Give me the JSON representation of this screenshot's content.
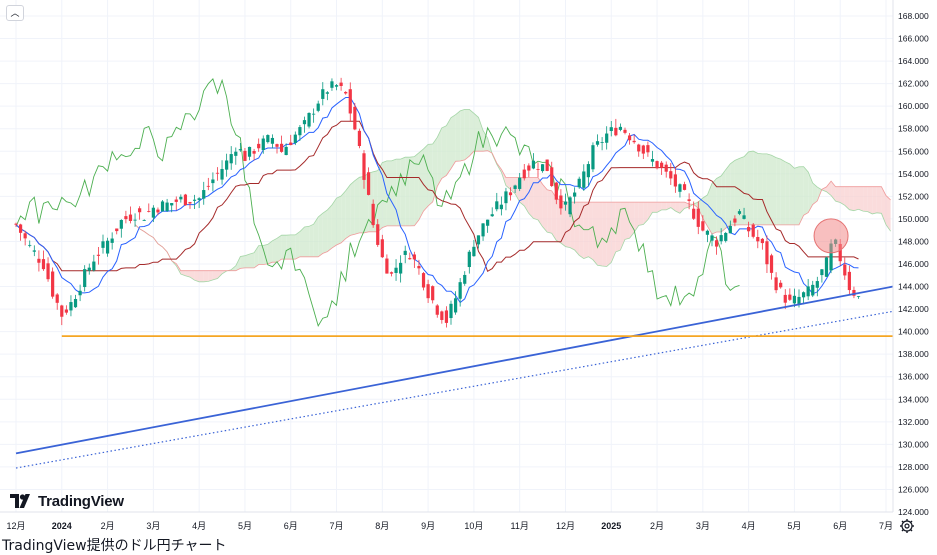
{
  "ui": {
    "collapse_icon": "chevron-up-icon",
    "settings_icon": "gear-icon",
    "logo_icon": "tradingview-logo-icon",
    "logo_text": "TradingView",
    "caption": "TradingView提供のドル円チャート"
  },
  "chart_data": {
    "type": "candlestick",
    "instrument": "USD/JPY",
    "y_range": [
      124.0,
      168.0
    ],
    "y_ticks": [
      "124.000",
      "126.000",
      "128.000",
      "130.000",
      "132.000",
      "134.000",
      "136.000",
      "138.000",
      "140.000",
      "142.000",
      "144.000",
      "146.000",
      "148.000",
      "150.000",
      "152.000",
      "154.000",
      "156.000",
      "158.000",
      "160.000",
      "162.000",
      "164.000",
      "166.000",
      "168.000"
    ],
    "x_ticks": [
      {
        "label": "12月",
        "bold": false
      },
      {
        "label": "2024",
        "bold": true
      },
      {
        "label": "2月",
        "bold": false
      },
      {
        "label": "3月",
        "bold": false
      },
      {
        "label": "4月",
        "bold": false
      },
      {
        "label": "5月",
        "bold": false
      },
      {
        "label": "6月",
        "bold": false
      },
      {
        "label": "7月",
        "bold": false
      },
      {
        "label": "8月",
        "bold": false
      },
      {
        "label": "9月",
        "bold": false
      },
      {
        "label": "10月",
        "bold": false
      },
      {
        "label": "11月",
        "bold": false
      },
      {
        "label": "12月",
        "bold": false
      },
      {
        "label": "2025",
        "bold": true
      },
      {
        "label": "2月",
        "bold": false
      },
      {
        "label": "3月",
        "bold": false
      },
      {
        "label": "4月",
        "bold": false
      },
      {
        "label": "5月",
        "bold": false
      },
      {
        "label": "6月",
        "bold": false
      },
      {
        "label": "7月",
        "bold": false
      }
    ],
    "price_path": [
      [
        0,
        149.5
      ],
      [
        0.3,
        147.5
      ],
      [
        0.6,
        146.0
      ],
      [
        0.8,
        143.5
      ],
      [
        1.0,
        141.5
      ],
      [
        1.2,
        142.5
      ],
      [
        1.5,
        145.0
      ],
      [
        1.7,
        146.5
      ],
      [
        2.0,
        148.0
      ],
      [
        2.3,
        149.8
      ],
      [
        2.6,
        150.5
      ],
      [
        2.8,
        150.3
      ],
      [
        3.0,
        151.0
      ],
      [
        3.3,
        151.3
      ],
      [
        3.6,
        151.7
      ],
      [
        4.0,
        151.8
      ],
      [
        4.3,
        153.5
      ],
      [
        4.6,
        155.0
      ],
      [
        4.8,
        156.5
      ],
      [
        5.0,
        155.5
      ],
      [
        5.3,
        156.5
      ],
      [
        5.6,
        157.2
      ],
      [
        5.8,
        156.0
      ],
      [
        6.0,
        157.0
      ],
      [
        6.3,
        158.3
      ],
      [
        6.6,
        160.5
      ],
      [
        6.8,
        161.5
      ],
      [
        7.0,
        161.8
      ],
      [
        7.2,
        161.0
      ],
      [
        7.4,
        158.0
      ],
      [
        7.6,
        154.0
      ],
      [
        7.8,
        149.5
      ],
      [
        8.0,
        146.5
      ],
      [
        8.2,
        145.0
      ],
      [
        8.4,
        146.5
      ],
      [
        8.6,
        147.0
      ],
      [
        8.8,
        145.5
      ],
      [
        9.0,
        143.5
      ],
      [
        9.2,
        142.0
      ],
      [
        9.4,
        141.0
      ],
      [
        9.6,
        143.0
      ],
      [
        9.8,
        145.5
      ],
      [
        10.0,
        148.0
      ],
      [
        10.3,
        150.0
      ],
      [
        10.6,
        151.5
      ],
      [
        10.8,
        152.5
      ],
      [
        11.0,
        153.8
      ],
      [
        11.3,
        155.0
      ],
      [
        11.6,
        154.5
      ],
      [
        11.8,
        152.0
      ],
      [
        12.0,
        151.0
      ],
      [
        12.3,
        153.0
      ],
      [
        12.6,
        156.0
      ],
      [
        12.9,
        157.5
      ],
      [
        13.2,
        158.2
      ],
      [
        13.5,
        157.0
      ],
      [
        13.8,
        155.5
      ],
      [
        14.0,
        154.8
      ],
      [
        14.3,
        153.5
      ],
      [
        14.6,
        152.0
      ],
      [
        14.8,
        150.5
      ],
      [
        15.0,
        149.0
      ],
      [
        15.3,
        148.0
      ],
      [
        15.6,
        149.5
      ],
      [
        15.8,
        150.5
      ],
      [
        16.0,
        149.0
      ],
      [
        16.3,
        147.5
      ],
      [
        16.5,
        145.0
      ],
      [
        16.7,
        143.5
      ],
      [
        16.9,
        142.5
      ],
      [
        17.1,
        143.0
      ],
      [
        17.3,
        143.5
      ],
      [
        17.5,
        144.5
      ],
      [
        17.7,
        146.0
      ],
      [
        17.85,
        148.2
      ],
      [
        18.0,
        146.5
      ],
      [
        18.2,
        144.0
      ],
      [
        18.4,
        143.0
      ]
    ],
    "lines": [
      {
        "name": "",
        "style": "solid",
        "color": "#3a63d6",
        "from": [
          0,
          129.2
        ],
        "to": [
          19.2,
          144.0
        ]
      },
      {
        "name": "",
        "style": "dotted",
        "color": "#3a63d6",
        "from": [
          0,
          127.9
        ],
        "to": [
          19.2,
          141.8
        ]
      },
      {
        "name": "",
        "style": "solid",
        "color": "#f5a623",
        "from": [
          1.0,
          139.6
        ],
        "to": [
          19.2,
          139.6
        ]
      }
    ],
    "highlight_circle": {
      "x": 17.8,
      "y": 148.5,
      "color": "#f28b8b"
    },
    "grid": true,
    "legend": "none"
  }
}
